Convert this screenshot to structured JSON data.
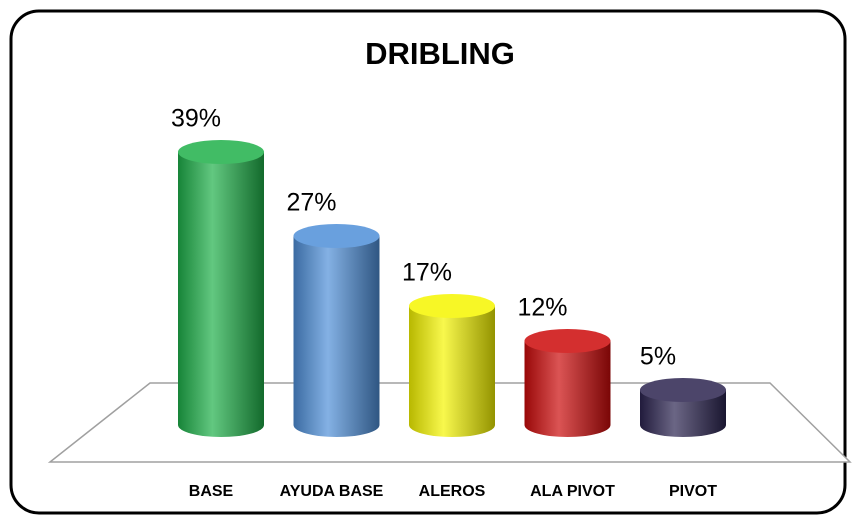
{
  "chart_data": {
    "type": "bar",
    "title": "DRIBLING",
    "categories": [
      "BASE",
      "AYUDA BASE",
      "ALEROS",
      "ALA PIVOT",
      "PIVOT"
    ],
    "values": [
      39,
      27,
      17,
      12,
      5
    ],
    "value_labels": [
      "39%",
      "27%",
      "17%",
      "12%",
      "5%"
    ],
    "colors": [
      "#1fb04a",
      "#4f8fd8",
      "#f5f500",
      "#cc0a0a",
      "#2c2450"
    ]
  }
}
